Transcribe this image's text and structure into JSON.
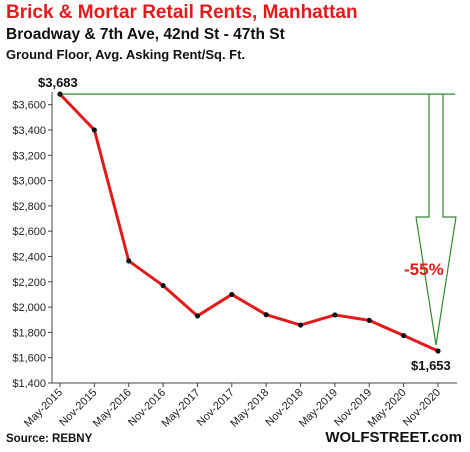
{
  "header": {
    "title": "Brick & Mortar Retail Rents, Manhattan",
    "subtitle": "Broadway & 7th Ave, 42nd St - 47th St",
    "subtitle2": "Ground Floor, Avg. Asking Rent/Sq. Ft."
  },
  "footer": {
    "source": "Source: REBNY",
    "brand": "WOLFSTREET.com"
  },
  "chart_data": {
    "type": "line",
    "categories": [
      "May-2015",
      "Nov-2015",
      "May-2016",
      "Nov-2016",
      "May-2017",
      "Nov-2017",
      "May-2018",
      "Nov-2018",
      "May-2019",
      "Nov-2019",
      "May-2020",
      "Nov-2020"
    ],
    "values": [
      3683,
      3400,
      2365,
      2170,
      1930,
      2100,
      1940,
      1858,
      1938,
      1895,
      1775,
      1653
    ],
    "y_ticks": [
      "1,400",
      "1,600",
      "1,800",
      "2,000",
      "2,200",
      "2,400",
      "2,600",
      "2,800",
      "3,000",
      "3,200",
      "3,400",
      "3,600"
    ],
    "ylim": [
      1400,
      3700
    ],
    "data_labels": {
      "first": "$3,683",
      "last": "$1,653"
    },
    "annotation": "-55%",
    "colors": {
      "line": "#e31a1c",
      "marker": "#111111",
      "annotation_line": "#2e8b2e"
    },
    "grid": false,
    "legend": "none"
  }
}
